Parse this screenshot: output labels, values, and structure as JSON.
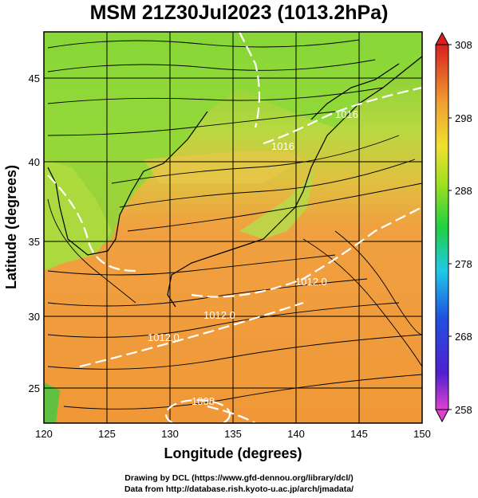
{
  "title": "MSM 21Z30Jul2023 (1013.2hPa)",
  "chart_data": {
    "type": "heatmap",
    "xlabel": "Longitude (degrees)",
    "ylabel": "Latitude  (degrees)",
    "xlim": [
      120,
      150
    ],
    "ylim": [
      22.4,
      47.6
    ],
    "xticks": [
      "120",
      "125",
      "130",
      "135",
      "140",
      "145",
      "150"
    ],
    "yticks": [
      "25",
      "30",
      "35",
      "40",
      "45"
    ],
    "colorbar": {
      "min": 258,
      "max": 308,
      "ticks": [
        "308",
        "298",
        "288",
        "278",
        "268",
        "258"
      ],
      "colors": [
        "#d03cd0",
        "#6a1fd0",
        "#2060e0",
        "#20c0e0",
        "#20d060",
        "#a0e020",
        "#f0e020",
        "#f0a030",
        "#e06020",
        "#d02020"
      ]
    },
    "contour_labels": [
      "1012.0",
      "1012.0",
      "1012.0",
      "1016",
      "1016",
      "1008"
    ],
    "grid": true
  },
  "footer": {
    "line1": "Drawing by DCL (https://www.gfd-dennou.org/library/dcl/)",
    "line2": "Data from http://database.rish.kyoto-u.ac.jp/arch/jmadata/"
  }
}
